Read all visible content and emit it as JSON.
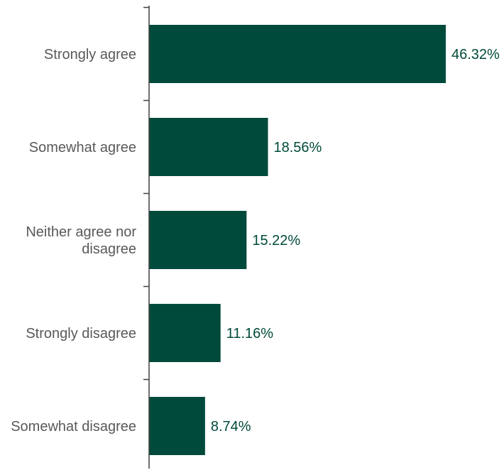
{
  "colors": {
    "bar": "#004a3b",
    "value_label": "#004a3b",
    "category_label": "#595959",
    "axis": "#404040"
  },
  "chart_data": {
    "type": "bar",
    "orientation": "horizontal",
    "categories": [
      "Strongly agree",
      "Somewhat agree",
      "Neither agree nor disagree",
      "Strongly disagree",
      "Somewhat disagree"
    ],
    "category_lines": [
      [
        "Strongly agree"
      ],
      [
        "Somewhat agree"
      ],
      [
        "Neither agree nor",
        "disagree"
      ],
      [
        "Strongly disagree"
      ],
      [
        "Somewhat disagree"
      ]
    ],
    "values": [
      46.32,
      18.56,
      15.22,
      11.16,
      8.74
    ],
    "value_labels": [
      "46.32%",
      "18.56%",
      "15.22%",
      "11.16%",
      "8.74%"
    ],
    "unit": "%",
    "xlim": [
      0,
      50
    ],
    "grid": false,
    "legend": "none"
  }
}
